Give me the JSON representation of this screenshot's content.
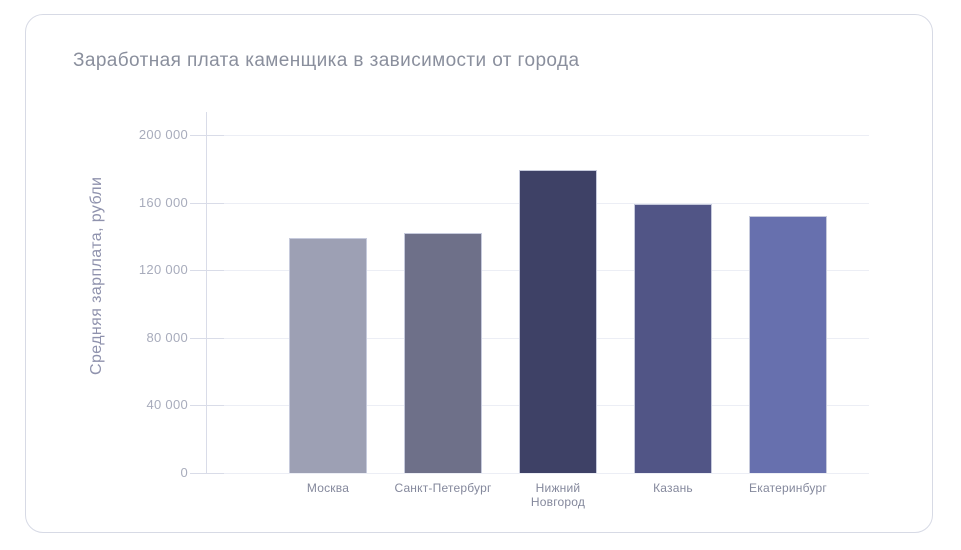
{
  "chart_data": {
    "type": "bar",
    "title": "Заработная плата каменщика в зависимости от города",
    "ylabel": "Средняя зарплата, рубли",
    "xlabel": "",
    "categories": [
      "Москва",
      "Санкт-Петербург",
      "Нижний\nНовгород",
      "Казань",
      "Екатеринбург"
    ],
    "values": [
      139000,
      142000,
      179000,
      159000,
      152000
    ],
    "bar_colors": [
      "#9da0b4",
      "#6e7089",
      "#3e4166",
      "#515586",
      "#6770ae"
    ],
    "ylim": [
      0,
      200000
    ],
    "ytick_step": 40000,
    "ytick_labels": [
      "0",
      "40 000",
      "80 000",
      "120 000",
      "160 000",
      "200 000"
    ],
    "grid": true,
    "legend": false
  },
  "style": {
    "title_color": "#8a8f9d",
    "axis_label_color": "#8f92ad",
    "tick_label_color": "#a8acbc",
    "category_label_color": "#84889c",
    "gridline_color": "#eceef5",
    "axis_line_color": "#d9dce8",
    "bar_edge_color": "#c6cadc",
    "card_border_color": "#d7dae5",
    "card_background": "#ffffff"
  }
}
